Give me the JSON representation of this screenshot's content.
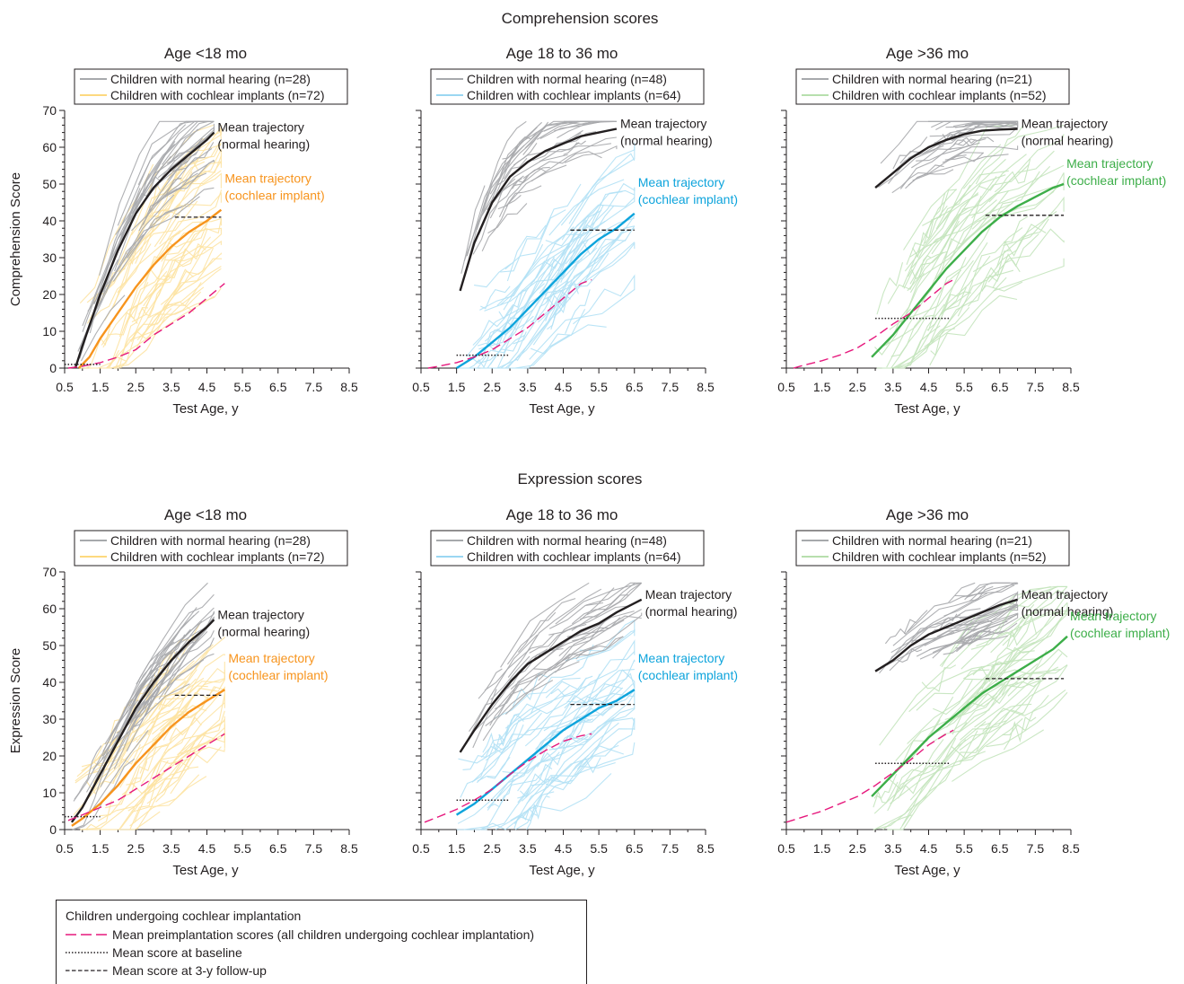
{
  "sections": [
    {
      "key": "comp",
      "title": "Comprehension scores",
      "ylabel": "Comprehension Score"
    },
    {
      "key": "expr",
      "title": "Expression scores",
      "ylabel": "Expression Score"
    }
  ],
  "colors": {
    "nh_individual": "#a7a9ac",
    "nh_mean": "#231f20",
    "preimplant": "#e6197d",
    "ci_lt18": {
      "light": "#fde3a3",
      "legend": "#fdd97f",
      "mean": "#f7941d",
      "text": "#f7941d"
    },
    "ci_18_36": {
      "light": "#b3e1f5",
      "legend": "#9bd7f2",
      "mean": "#0ea4dc",
      "text": "#0ea4dc"
    },
    "ci_gt36": {
      "light": "#c4e4bc",
      "legend": "#b7dfad",
      "mean": "#3dae49",
      "text": "#3dae49"
    }
  },
  "bottom_legend": {
    "title": "Children undergoing cochlear implantation",
    "items": [
      {
        "style": "dashed-magenta",
        "label": "Mean preimplantation scores (all children undergoing cochlear implantation)"
      },
      {
        "style": "dotted",
        "label": "Mean score at baseline"
      },
      {
        "style": "dashed",
        "label": "Mean score at 3-y follow-up"
      }
    ]
  },
  "chart_data": [
    {
      "id": "comp_lt18",
      "section": "comp",
      "type": "line",
      "title": "Age <18 mo",
      "xlabel": "Test Age, y",
      "ylabel": "Comprehension Score",
      "xlim": [
        0.5,
        8.5
      ],
      "ylim": [
        0,
        70
      ],
      "xticks": [
        "0.5",
        "1.5",
        "2.5",
        "3.5",
        "4.5",
        "5.5",
        "6.5",
        "7.5",
        "8.5"
      ],
      "yticks": [
        "0",
        "10",
        "20",
        "30",
        "40",
        "50",
        "60",
        "70"
      ],
      "legend": [
        "Children with normal hearing (n=28)",
        "Children with cochlear implants (n=72)"
      ],
      "group": "ci_lt18",
      "annotations": {
        "nh": [
          "Mean trajectory",
          "(normal hearing)"
        ],
        "ci": [
          "Mean trajectory",
          "(cochlear implant)"
        ]
      },
      "series": [
        {
          "name": "Mean trajectory (normal hearing)",
          "kind": "nh_mean",
          "x": [
            0.8,
            1.0,
            1.5,
            2.0,
            2.5,
            3.0,
            3.5,
            4.0,
            4.5,
            4.7
          ],
          "y": [
            0,
            6,
            20,
            32,
            42,
            49,
            54,
            58,
            62,
            64
          ]
        },
        {
          "name": "Mean trajectory (cochlear implant)",
          "kind": "ci_mean",
          "x": [
            0.9,
            1.2,
            1.5,
            2.0,
            2.5,
            3.0,
            3.5,
            4.0,
            4.5,
            4.9
          ],
          "y": [
            0,
            3,
            8,
            15,
            22,
            28,
            33,
            37,
            40,
            43
          ]
        },
        {
          "name": "Mean preimplantation scores",
          "kind": "preimplant",
          "x": [
            0.6,
            1.0,
            1.5,
            2.0,
            2.5,
            3.0,
            3.5,
            4.0,
            4.5,
            5.0
          ],
          "y": [
            0,
            0.5,
            1.5,
            3,
            5,
            9,
            12,
            15,
            19,
            23
          ]
        },
        {
          "name": "Mean score at baseline",
          "kind": "baseline",
          "x": [
            0.5,
            1.5
          ],
          "y": [
            1,
            1
          ]
        },
        {
          "name": "Mean score at 3-y follow-up",
          "kind": "followup",
          "x": [
            3.6,
            4.9
          ],
          "y": [
            41,
            41
          ]
        }
      ]
    },
    {
      "id": "comp_18_36",
      "section": "comp",
      "type": "line",
      "title": "Age 18 to 36 mo",
      "xlabel": "Test Age, y",
      "ylabel": "",
      "xlim": [
        0.5,
        8.5
      ],
      "ylim": [
        0,
        70
      ],
      "xticks": [
        "0.5",
        "1.5",
        "2.5",
        "3.5",
        "4.5",
        "5.5",
        "6.5",
        "7.5",
        "8.5"
      ],
      "yticks": [],
      "legend": [
        "Children with normal hearing (n=48)",
        "Children with cochlear implants (n=64)"
      ],
      "group": "ci_18_36",
      "annotations": {
        "nh": [
          "Mean trajectory",
          "(normal hearing)"
        ],
        "ci": [
          "Mean trajectory",
          "(cochlear implant)"
        ]
      },
      "series": [
        {
          "name": "Mean trajectory (normal hearing)",
          "kind": "nh_mean",
          "x": [
            1.6,
            2.0,
            2.5,
            3.0,
            3.5,
            4.0,
            4.5,
            5.0,
            5.5,
            6.0
          ],
          "y": [
            21,
            34,
            45,
            52,
            56,
            59,
            61,
            63,
            64,
            65
          ]
        },
        {
          "name": "Mean trajectory (cochlear implant)",
          "kind": "ci_mean",
          "x": [
            1.5,
            2.0,
            2.5,
            3.0,
            3.5,
            4.0,
            4.5,
            5.0,
            5.5,
            6.0,
            6.5
          ],
          "y": [
            0,
            3,
            7,
            11,
            16,
            21,
            26,
            31,
            35,
            38,
            42
          ]
        },
        {
          "name": "Mean preimplantation scores",
          "kind": "preimplant",
          "x": [
            0.7,
            1.0,
            1.5,
            2.0,
            2.5,
            3.0,
            3.5,
            4.0,
            4.5,
            5.0,
            5.3
          ],
          "y": [
            0,
            0.5,
            1.5,
            3,
            5,
            8,
            11,
            15,
            19,
            23,
            24
          ]
        },
        {
          "name": "Mean score at baseline",
          "kind": "baseline",
          "x": [
            1.5,
            3.0
          ],
          "y": [
            3.5,
            3.5
          ]
        },
        {
          "name": "Mean score at 3-y follow-up",
          "kind": "followup",
          "x": [
            4.7,
            6.5
          ],
          "y": [
            37.5,
            37.5
          ]
        }
      ]
    },
    {
      "id": "comp_gt36",
      "section": "comp",
      "type": "line",
      "title": "Age >36 mo",
      "xlabel": "Test Age, y",
      "ylabel": "",
      "xlim": [
        0.5,
        8.5
      ],
      "ylim": [
        0,
        70
      ],
      "xticks": [
        "0.5",
        "1.5",
        "2.5",
        "3.5",
        "4.5",
        "5.5",
        "6.5",
        "7.5",
        "8.5"
      ],
      "yticks": [],
      "legend": [
        "Children with normal hearing (n=21)",
        "Children with cochlear implants (n=52)"
      ],
      "group": "ci_gt36",
      "annotations": {
        "nh": [
          "Mean trajectory",
          "(normal hearing)"
        ],
        "ci": [
          "Mean trajectory",
          "(cochlear implant)"
        ]
      },
      "series": [
        {
          "name": "Mean trajectory (normal hearing)",
          "kind": "nh_mean",
          "x": [
            3.0,
            3.5,
            4.0,
            4.5,
            5.0,
            5.5,
            6.0,
            6.5,
            7.0
          ],
          "y": [
            49,
            53,
            57,
            60,
            62,
            63.5,
            64.5,
            64.8,
            65
          ]
        },
        {
          "name": "Mean trajectory (cochlear implant)",
          "kind": "ci_mean",
          "x": [
            2.9,
            3.5,
            4.0,
            4.5,
            5.0,
            5.5,
            6.0,
            6.5,
            7.0,
            7.5,
            8.0,
            8.3
          ],
          "y": [
            3,
            9,
            15,
            21,
            27,
            32,
            37,
            41,
            44,
            46.5,
            49,
            50
          ]
        },
        {
          "name": "Mean preimplantation scores",
          "kind": "preimplant",
          "x": [
            0.7,
            1.0,
            1.5,
            2.0,
            2.5,
            3.0,
            3.5,
            4.0,
            4.5,
            5.0,
            5.2
          ],
          "y": [
            0,
            0.8,
            2,
            3.5,
            5.5,
            8.5,
            12,
            15,
            19,
            23,
            24
          ]
        },
        {
          "name": "Mean score at baseline",
          "kind": "baseline",
          "x": [
            3.0,
            5.1
          ],
          "y": [
            13.5,
            13.5
          ]
        },
        {
          "name": "Mean score at 3-y follow-up",
          "kind": "followup",
          "x": [
            6.1,
            8.3
          ],
          "y": [
            41.5,
            41.5
          ]
        }
      ]
    },
    {
      "id": "expr_lt18",
      "section": "expr",
      "type": "line",
      "title": "Age <18 mo",
      "xlabel": "Test Age, y",
      "ylabel": "Expression Score",
      "xlim": [
        0.5,
        8.5
      ],
      "ylim": [
        0,
        70
      ],
      "xticks": [
        "0.5",
        "1.5",
        "2.5",
        "3.5",
        "4.5",
        "5.5",
        "6.5",
        "7.5",
        "8.5"
      ],
      "yticks": [
        "0",
        "10",
        "20",
        "30",
        "40",
        "50",
        "60",
        "70"
      ],
      "legend": [
        "Children with normal hearing (n=28)",
        "Children with cochlear implants (n=72)"
      ],
      "group": "ci_lt18",
      "annotations": {
        "nh": [
          "Mean trajectory",
          "(normal hearing)"
        ],
        "ci": [
          "Mean trajectory",
          "(cochlear implant)"
        ]
      },
      "series": [
        {
          "name": "Mean trajectory (normal hearing)",
          "kind": "nh_mean",
          "x": [
            0.7,
            1.0,
            1.5,
            2.0,
            2.5,
            3.0,
            3.5,
            4.0,
            4.5,
            4.7
          ],
          "y": [
            2,
            6,
            15,
            24,
            33,
            40,
            46,
            51,
            55,
            57
          ]
        },
        {
          "name": "Mean trajectory (cochlear implant)",
          "kind": "ci_mean",
          "x": [
            0.7,
            1.0,
            1.5,
            2.0,
            2.5,
            3.0,
            3.5,
            4.0,
            4.5,
            5.0
          ],
          "y": [
            1,
            3,
            7,
            12,
            18,
            23,
            28,
            32,
            35,
            38
          ]
        },
        {
          "name": "Mean preimplantation scores",
          "kind": "preimplant",
          "x": [
            0.6,
            1.0,
            1.5,
            2.0,
            2.5,
            3.0,
            3.5,
            4.0,
            4.5,
            5.0
          ],
          "y": [
            2.5,
            4,
            6,
            8,
            11,
            14,
            17,
            20,
            23,
            26
          ]
        },
        {
          "name": "Mean score at baseline",
          "kind": "baseline",
          "x": [
            0.5,
            1.5
          ],
          "y": [
            3.5,
            3.5
          ]
        },
        {
          "name": "Mean score at 3-y follow-up",
          "kind": "followup",
          "x": [
            3.6,
            4.9
          ],
          "y": [
            36.5,
            36.5
          ]
        }
      ]
    },
    {
      "id": "expr_18_36",
      "section": "expr",
      "type": "line",
      "title": "Age 18 to 36 mo",
      "xlabel": "Test Age, y",
      "ylabel": "",
      "xlim": [
        0.5,
        8.5
      ],
      "ylim": [
        0,
        70
      ],
      "xticks": [
        "0.5",
        "1.5",
        "2.5",
        "3.5",
        "4.5",
        "5.5",
        "6.5",
        "7.5",
        "8.5"
      ],
      "yticks": [],
      "legend": [
        "Children with normal hearing (n=48)",
        "Children with cochlear implants (n=64)"
      ],
      "group": "ci_18_36",
      "annotations": {
        "nh": [
          "Mean trajectory",
          "(normal hearing)"
        ],
        "ci": [
          "Mean trajectory",
          "(cochlear implant)"
        ]
      },
      "series": [
        {
          "name": "Mean trajectory (normal hearing)",
          "kind": "nh_mean",
          "x": [
            1.6,
            2.0,
            2.5,
            3.0,
            3.5,
            4.0,
            4.5,
            5.0,
            5.5,
            6.0,
            6.7
          ],
          "y": [
            21,
            27,
            34,
            40,
            45,
            48,
            51,
            54,
            56,
            59,
            62.5
          ]
        },
        {
          "name": "Mean trajectory (cochlear implant)",
          "kind": "ci_mean",
          "x": [
            1.5,
            2.0,
            2.5,
            3.0,
            3.5,
            4.0,
            4.5,
            5.0,
            5.5,
            6.0,
            6.5
          ],
          "y": [
            4,
            7,
            11,
            15,
            19,
            23,
            27,
            30,
            33,
            35,
            38
          ]
        },
        {
          "name": "Mean preimplantation scores",
          "kind": "preimplant",
          "x": [
            0.6,
            1.0,
            1.5,
            2.0,
            2.5,
            3.0,
            3.5,
            4.0,
            4.5,
            5.0,
            5.3
          ],
          "y": [
            2,
            3.5,
            5.5,
            8,
            11,
            15,
            18.5,
            21.5,
            24,
            25.5,
            26
          ]
        },
        {
          "name": "Mean score at baseline",
          "kind": "baseline",
          "x": [
            1.5,
            3.0
          ],
          "y": [
            8,
            8
          ]
        },
        {
          "name": "Mean score at 3-y follow-up",
          "kind": "followup",
          "x": [
            4.7,
            6.5
          ],
          "y": [
            34,
            34
          ]
        }
      ]
    },
    {
      "id": "expr_gt36",
      "section": "expr",
      "type": "line",
      "title": "Age >36 mo",
      "xlabel": "Test Age, y",
      "ylabel": "",
      "xlim": [
        0.5,
        8.5
      ],
      "ylim": [
        0,
        70
      ],
      "xticks": [
        "0.5",
        "1.5",
        "2.5",
        "3.5",
        "4.5",
        "5.5",
        "6.5",
        "7.5",
        "8.5"
      ],
      "yticks": [],
      "legend": [
        "Children with normal hearing (n=21)",
        "Children with cochlear implants (n=52)"
      ],
      "group": "ci_gt36",
      "annotations": {
        "nh": [
          "Mean trajectory",
          "(normal hearing)"
        ],
        "ci": [
          "Mean trajectory",
          "(cochlear implant)"
        ]
      },
      "series": [
        {
          "name": "Mean trajectory (normal hearing)",
          "kind": "nh_mean",
          "x": [
            3.0,
            3.5,
            4.0,
            4.5,
            5.0,
            5.5,
            6.0,
            6.5,
            7.0
          ],
          "y": [
            43,
            46,
            50,
            53,
            55,
            57,
            59,
            61,
            62.5
          ]
        },
        {
          "name": "Mean trajectory (cochlear implant)",
          "kind": "ci_mean",
          "x": [
            2.9,
            3.5,
            4.0,
            4.5,
            5.0,
            5.5,
            6.0,
            6.5,
            7.0,
            7.5,
            8.0,
            8.4
          ],
          "y": [
            9,
            15,
            20,
            25,
            29,
            33,
            37,
            40,
            43,
            46,
            49,
            52.5
          ]
        },
        {
          "name": "Mean preimplantation scores",
          "kind": "preimplant",
          "x": [
            0.5,
            1.0,
            1.5,
            2.0,
            2.5,
            3.0,
            3.5,
            4.0,
            4.5,
            5.0,
            5.2
          ],
          "y": [
            2,
            3.5,
            5,
            7,
            9,
            12,
            15.5,
            19,
            23,
            26,
            27
          ]
        },
        {
          "name": "Mean score at baseline",
          "kind": "baseline",
          "x": [
            3.0,
            5.1
          ],
          "y": [
            18,
            18
          ]
        },
        {
          "name": "Mean score at 3-y follow-up",
          "kind": "followup",
          "x": [
            6.1,
            8.3
          ],
          "y": [
            41,
            41
          ]
        }
      ]
    }
  ]
}
